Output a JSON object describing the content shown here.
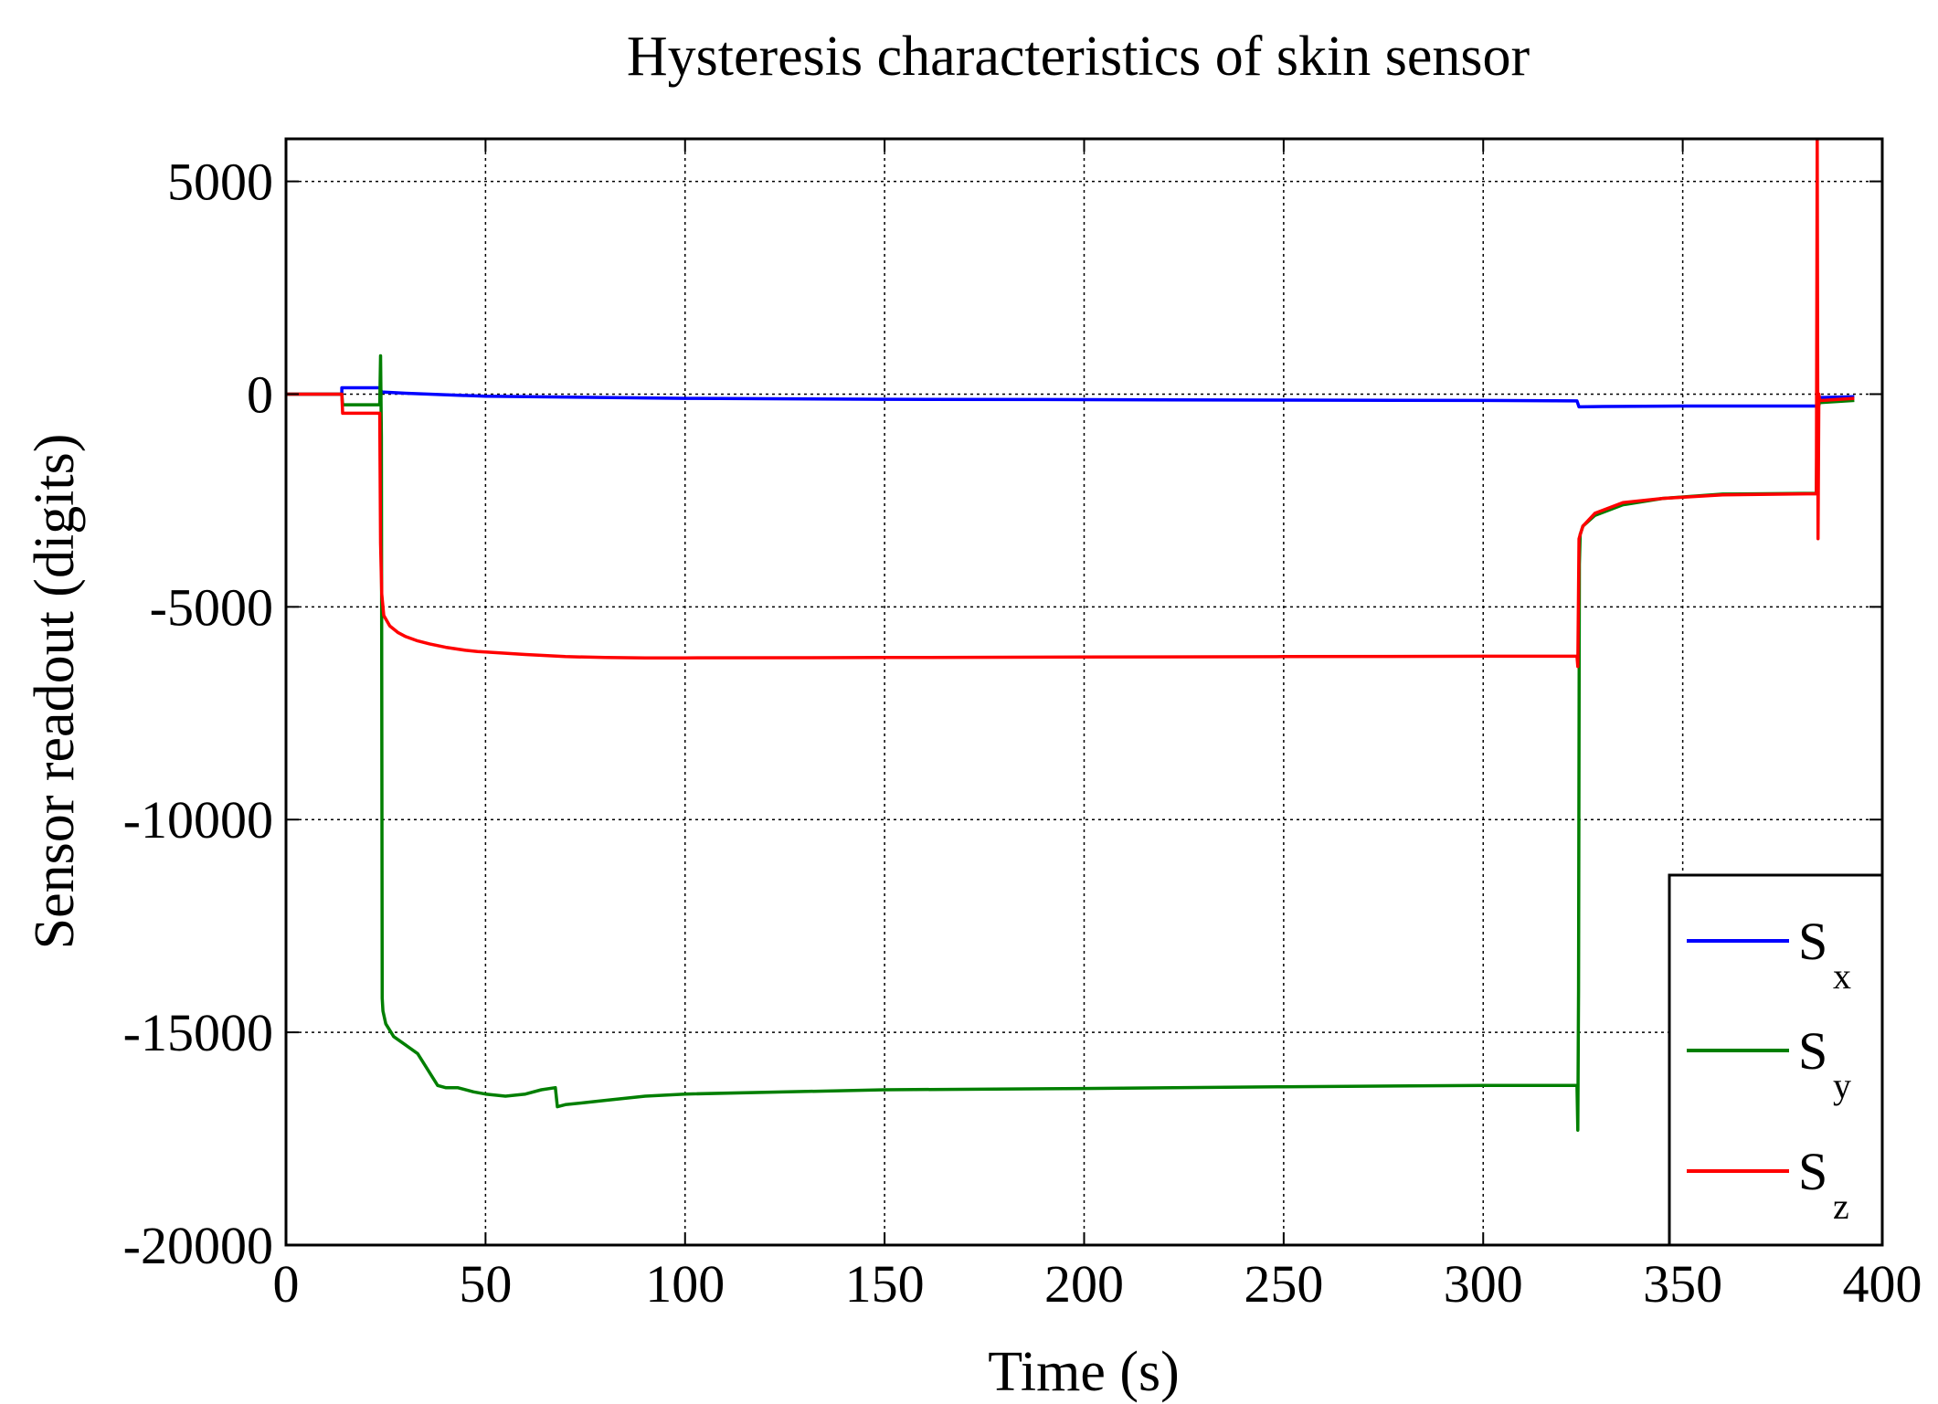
{
  "chart_data": {
    "type": "line",
    "title": "Hysteresis characteristics of skin sensor",
    "xlabel": "Time (s)",
    "ylabel": "Sensor readout (digits)",
    "xlim": [
      0,
      400
    ],
    "ylim": [
      -20000,
      6000
    ],
    "xticks": [
      0,
      50,
      100,
      150,
      200,
      250,
      300,
      350,
      400
    ],
    "yticks": [
      5000,
      0,
      -5000,
      -10000,
      -15000,
      -20000
    ],
    "grid": true,
    "legend_position": "bottom-right",
    "legend": [
      {
        "base": "S",
        "sub": "x"
      },
      {
        "base": "S",
        "sub": "y"
      },
      {
        "base": "S",
        "sub": "z"
      }
    ],
    "series": [
      {
        "key": "Sx",
        "color": "#0000ff",
        "x": [
          0,
          14,
          14,
          23.5,
          24,
          30,
          50,
          100,
          150,
          200,
          250,
          300,
          323.5,
          324,
          330,
          350,
          383.5,
          384,
          393
        ],
        "y": [
          0,
          0,
          150,
          150,
          50,
          20,
          -50,
          -100,
          -120,
          -130,
          -140,
          -150,
          -160,
          -300,
          -290,
          -280,
          -280,
          -80,
          -60
        ]
      },
      {
        "key": "Sy",
        "color": "#007f00",
        "x": [
          0,
          14,
          14.2,
          23.5,
          23.7,
          23.9,
          24.1,
          24.3,
          25,
          27,
          30,
          33,
          35,
          37,
          38,
          40,
          43,
          47,
          50,
          55,
          60,
          64,
          67.5,
          68,
          70,
          75,
          80,
          90,
          100,
          150,
          200,
          250,
          300,
          323.5,
          323.7,
          323.9,
          324.1,
          324.3,
          325,
          328,
          335,
          345,
          360,
          383.5,
          383.7,
          384,
          384.3,
          393
        ],
        "y": [
          0,
          0,
          -250,
          -250,
          900,
          -1000,
          -14200,
          -14500,
          -14800,
          -15100,
          -15300,
          -15500,
          -15800,
          -16100,
          -16250,
          -16300,
          -16300,
          -16400,
          -16450,
          -16500,
          -16450,
          -16350,
          -16300,
          -16750,
          -16700,
          -16650,
          -16600,
          -16500,
          -16450,
          -16350,
          -16320,
          -16280,
          -16250,
          -16250,
          -17300,
          -14000,
          -4000,
          -3300,
          -3100,
          -2850,
          -2600,
          -2450,
          -2350,
          -2330,
          -200,
          -300,
          -200,
          -150
        ]
      },
      {
        "key": "Sz",
        "color": "#ff0000",
        "x": [
          0,
          14,
          14.2,
          23.5,
          23.7,
          24,
          24.5,
          26,
          28,
          30,
          33,
          36,
          40,
          45,
          48,
          50,
          60,
          70,
          80,
          90,
          100,
          150,
          200,
          250,
          300,
          323.5,
          323.7,
          324,
          324.3,
          325,
          328,
          335,
          345,
          360,
          383.5,
          383.7,
          383.9,
          384.1,
          384.3,
          385,
          393
        ],
        "y": [
          0,
          0,
          -450,
          -450,
          -3500,
          -4700,
          -5200,
          -5450,
          -5600,
          -5700,
          -5800,
          -5870,
          -5950,
          -6020,
          -6050,
          -6060,
          -6120,
          -6170,
          -6190,
          -6200,
          -6200,
          -6190,
          -6180,
          -6170,
          -6160,
          -6160,
          -6400,
          -3400,
          -3300,
          -3100,
          -2800,
          -2550,
          -2450,
          -2370,
          -2340,
          6000,
          -3400,
          0,
          -150,
          -150,
          -100
        ]
      }
    ]
  }
}
